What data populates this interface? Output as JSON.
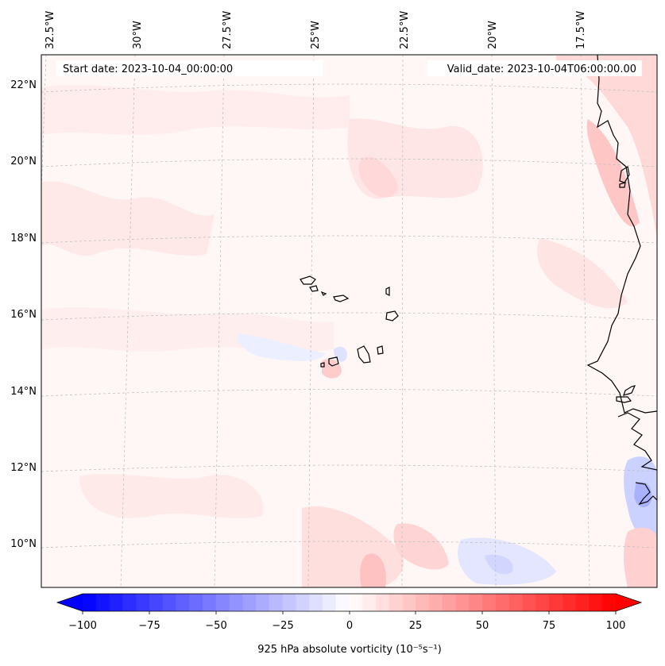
{
  "header": {
    "start_date": "Start date: 2023-10-04_00:00:00",
    "valid_date": "Valid_date: 2023-10-04T06:00:00.00"
  },
  "longitude_labels": [
    "32.5°W",
    "30°W",
    "27.5°W",
    "25°W",
    "22.5°W",
    "20°W",
    "17.5°W"
  ],
  "latitude_labels": [
    "22°N",
    "20°N",
    "18°N",
    "16°N",
    "14°N",
    "12°N",
    "10°N"
  ],
  "colorbar": {
    "ticks": [
      "−100",
      "−75",
      "−50",
      "−25",
      "0",
      "25",
      "50",
      "75",
      "100"
    ],
    "range": [
      -100,
      100
    ],
    "levels": 40,
    "low_color": "#0000ff",
    "high_color": "#ff0000",
    "label": "925 hPa absolute vorticity (10⁻⁵s⁻¹)"
  },
  "colors": {
    "coastline": "#000000",
    "gridline": "#bbbbbb",
    "field_light_red": "#ffe8e8",
    "field_medium_red": "#ffd2d2",
    "field_light_blue": "#e6e8ff"
  }
}
